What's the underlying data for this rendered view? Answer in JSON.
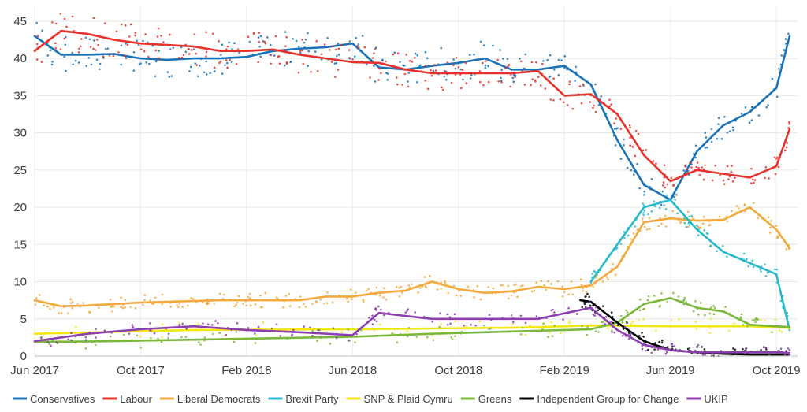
{
  "chart_data": {
    "type": "line",
    "x_ticks": [
      "Jun 2017",
      "Oct 2017",
      "Feb 2018",
      "Jun 2018",
      "Oct 2018",
      "Feb 2019",
      "Jun 2019",
      "Oct 2019"
    ],
    "y_ticks": [
      "0",
      "5",
      "10",
      "15",
      "20",
      "25",
      "30",
      "35",
      "40",
      "45"
    ],
    "ylim": [
      0,
      47
    ],
    "xlim": [
      "2017-06",
      "2019-10"
    ],
    "grid": true,
    "legend_position": "bottom",
    "series": [
      {
        "name": "Conservatives",
        "color": "#1a73b8",
        "points": [
          [
            "2017-06",
            43
          ],
          [
            "2017-07",
            40.5
          ],
          [
            "2017-08",
            40.5
          ],
          [
            "2017-09",
            40.6
          ],
          [
            "2017-10",
            40
          ],
          [
            "2017-11",
            39.8
          ],
          [
            "2017-12",
            40
          ],
          [
            "2018-01",
            40
          ],
          [
            "2018-02",
            40.2
          ],
          [
            "2018-03",
            41
          ],
          [
            "2018-04",
            41.3
          ],
          [
            "2018-05",
            41.5
          ],
          [
            "2018-06",
            42
          ],
          [
            "2018-07",
            38.8
          ],
          [
            "2018-08",
            38.5
          ],
          [
            "2018-09",
            39
          ],
          [
            "2018-10",
            39.4
          ],
          [
            "2018-11",
            40
          ],
          [
            "2018-12",
            38.5
          ],
          [
            "2019-01",
            38.5
          ],
          [
            "2019-02",
            39
          ],
          [
            "2019-03",
            36.5
          ],
          [
            "2019-04",
            29
          ],
          [
            "2019-05",
            23
          ],
          [
            "2019-06",
            21
          ],
          [
            "2019-07",
            27.5
          ],
          [
            "2019-08",
            31
          ],
          [
            "2019-09",
            32.8
          ],
          [
            "2019-10",
            36
          ],
          [
            "2019-10.5",
            43
          ]
        ]
      },
      {
        "name": "Labour",
        "color": "#e8312a",
        "points": [
          [
            "2017-06",
            41
          ],
          [
            "2017-07",
            43.7
          ],
          [
            "2017-08",
            43.3
          ],
          [
            "2017-09",
            42.5
          ],
          [
            "2017-10",
            42
          ],
          [
            "2017-11",
            41.8
          ],
          [
            "2017-12",
            41.6
          ],
          [
            "2018-01",
            41
          ],
          [
            "2018-02",
            41
          ],
          [
            "2018-03",
            41.2
          ],
          [
            "2018-04",
            40.5
          ],
          [
            "2018-05",
            40
          ],
          [
            "2018-06",
            39.5
          ],
          [
            "2018-07",
            39.4
          ],
          [
            "2018-08",
            38.5
          ],
          [
            "2018-09",
            38
          ],
          [
            "2018-10",
            38
          ],
          [
            "2018-11",
            38
          ],
          [
            "2018-12",
            38
          ],
          [
            "2019-01",
            38.3
          ],
          [
            "2019-02",
            35
          ],
          [
            "2019-03",
            35.2
          ],
          [
            "2019-04",
            32.5
          ],
          [
            "2019-05",
            27
          ],
          [
            "2019-06",
            23.5
          ],
          [
            "2019-07",
            25
          ],
          [
            "2019-08",
            24.5
          ],
          [
            "2019-09",
            24
          ],
          [
            "2019-10",
            25.5
          ],
          [
            "2019-10.5",
            30.5
          ]
        ]
      },
      {
        "name": "Liberal Democrats",
        "color": "#f3a93b",
        "points": [
          [
            "2017-06",
            7.5
          ],
          [
            "2017-07",
            6.7
          ],
          [
            "2017-08",
            6.8
          ],
          [
            "2017-09",
            7
          ],
          [
            "2017-10",
            7.2
          ],
          [
            "2017-11",
            7.3
          ],
          [
            "2017-12",
            7.4
          ],
          [
            "2018-01",
            7.5
          ],
          [
            "2018-02",
            7.5
          ],
          [
            "2018-03",
            7.5
          ],
          [
            "2018-04",
            7.5
          ],
          [
            "2018-05",
            8
          ],
          [
            "2018-06",
            8
          ],
          [
            "2018-07",
            8.5
          ],
          [
            "2018-08",
            8.8
          ],
          [
            "2018-09",
            10
          ],
          [
            "2018-10",
            9
          ],
          [
            "2018-11",
            8.5
          ],
          [
            "2018-12",
            8.7
          ],
          [
            "2019-01",
            9.3
          ],
          [
            "2019-02",
            9
          ],
          [
            "2019-03",
            9.5
          ],
          [
            "2019-04",
            12
          ],
          [
            "2019-05",
            18
          ],
          [
            "2019-06",
            18.5
          ],
          [
            "2019-07",
            18.2
          ],
          [
            "2019-08",
            18.3
          ],
          [
            "2019-09",
            20
          ],
          [
            "2019-10",
            17
          ],
          [
            "2019-10.5",
            14.5
          ]
        ]
      },
      {
        "name": "Brexit Party",
        "color": "#26b9c9",
        "points": [
          [
            "2019-03",
            10
          ],
          [
            "2019-04",
            15
          ],
          [
            "2019-05",
            20
          ],
          [
            "2019-06",
            21
          ],
          [
            "2019-07",
            17
          ],
          [
            "2019-08",
            14
          ],
          [
            "2019-09",
            12.5
          ],
          [
            "2019-10",
            11
          ],
          [
            "2019-10.5",
            3.5
          ]
        ]
      },
      {
        "name": "SNP & Plaid Cymru",
        "color": "#f4e613",
        "points": [
          [
            "2017-06",
            3
          ],
          [
            "2017-12",
            3.5
          ],
          [
            "2018-06",
            3.6
          ],
          [
            "2018-12",
            3.8
          ],
          [
            "2019-03",
            4.1
          ],
          [
            "2019-06",
            4
          ],
          [
            "2019-09",
            4
          ],
          [
            "2019-10.5",
            3.8
          ]
        ]
      },
      {
        "name": "Greens",
        "color": "#7ab83c",
        "points": [
          [
            "2017-06",
            1.9
          ],
          [
            "2017-09",
            2
          ],
          [
            "2017-12",
            2.2
          ],
          [
            "2018-03",
            2.4
          ],
          [
            "2018-06",
            2.6
          ],
          [
            "2018-09",
            3
          ],
          [
            "2018-12",
            3.3
          ],
          [
            "2019-03",
            3.6
          ],
          [
            "2019-04",
            4.5
          ],
          [
            "2019-05",
            7
          ],
          [
            "2019-06",
            7.8
          ],
          [
            "2019-07",
            6.5
          ],
          [
            "2019-08",
            6
          ],
          [
            "2019-09",
            4.2
          ],
          [
            "2019-10.5",
            3.9
          ]
        ]
      },
      {
        "name": "Independent Group for Change",
        "color": "#000000",
        "points": [
          [
            "2019-02.6",
            7.5
          ],
          [
            "2019-03",
            7.3
          ],
          [
            "2019-04",
            4.5
          ],
          [
            "2019-05",
            2
          ],
          [
            "2019-06",
            0.8
          ],
          [
            "2019-07",
            0.5
          ],
          [
            "2019-08",
            0.3
          ],
          [
            "2019-09",
            0.2
          ],
          [
            "2019-10",
            0.2
          ],
          [
            "2019-10.5",
            0.2
          ]
        ]
      },
      {
        "name": "UKIP",
        "color": "#8c3fae",
        "points": [
          [
            "2017-06",
            2
          ],
          [
            "2017-08",
            3
          ],
          [
            "2017-10",
            3.6
          ],
          [
            "2017-12",
            4
          ],
          [
            "2018-02",
            3.5
          ],
          [
            "2018-04",
            3.2
          ],
          [
            "2018-06",
            2.8
          ],
          [
            "2018-07",
            5.8
          ],
          [
            "2018-09",
            5
          ],
          [
            "2018-11",
            5
          ],
          [
            "2019-01",
            5
          ],
          [
            "2019-03",
            6.5
          ],
          [
            "2019-04",
            3.5
          ],
          [
            "2019-05",
            1.5
          ],
          [
            "2019-06",
            0.8
          ],
          [
            "2019-07",
            0.5
          ],
          [
            "2019-08",
            0.5
          ],
          [
            "2019-10",
            0.5
          ],
          [
            "2019-10.5",
            0.4
          ]
        ]
      }
    ]
  }
}
